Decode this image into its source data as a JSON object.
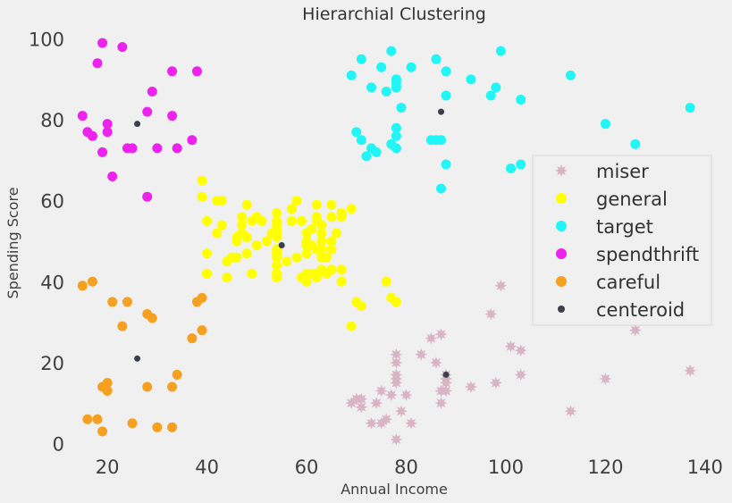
{
  "chart_data": {
    "type": "scatter",
    "title": "Hierarchial Clustering",
    "xlabel": "Annual Income",
    "ylabel": "Spending Score",
    "xlim": [
      11,
      142
    ],
    "ylim": [
      -3,
      103
    ],
    "x_ticks": [
      "20",
      "40",
      "60",
      "80",
      "100",
      "120",
      "140"
    ],
    "y_ticks": [
      "0",
      "20",
      "40",
      "60",
      "80",
      "100"
    ],
    "grid": false,
    "legend_position": "right",
    "series": [
      {
        "name": "miser",
        "color": "#d8b4c4",
        "marker": "star",
        "points": [
          [
            69,
            10
          ],
          [
            70,
            11
          ],
          [
            71,
            9
          ],
          [
            73,
            5
          ],
          [
            74,
            10
          ],
          [
            75,
            5
          ],
          [
            76,
            6
          ],
          [
            78,
            15
          ],
          [
            78,
            17
          ],
          [
            78,
            20
          ],
          [
            78,
            22
          ],
          [
            79,
            8
          ],
          [
            80,
            12
          ],
          [
            81,
            5
          ],
          [
            85,
            26
          ],
          [
            86,
            20
          ],
          [
            87,
            27
          ],
          [
            87,
            13
          ],
          [
            87,
            10
          ],
          [
            88,
            13
          ],
          [
            88,
            15
          ],
          [
            88,
            16
          ],
          [
            93,
            14
          ],
          [
            97,
            32
          ],
          [
            98,
            15
          ],
          [
            99,
            39
          ],
          [
            101,
            24
          ],
          [
            103,
            17
          ],
          [
            103,
            23
          ],
          [
            113,
            8
          ],
          [
            120,
            16
          ],
          [
            126,
            28
          ],
          [
            137,
            18
          ],
          [
            78,
            1
          ],
          [
            75,
            13
          ],
          [
            78,
            16
          ],
          [
            83,
            22
          ],
          [
            88,
            17
          ],
          [
            77,
            12
          ],
          [
            71,
            11
          ]
        ]
      },
      {
        "name": "general",
        "color": "#ffff00",
        "marker": "circle",
        "points": [
          [
            39,
            61
          ],
          [
            39,
            65
          ],
          [
            40,
            55
          ],
          [
            40,
            47
          ],
          [
            40,
            42
          ],
          [
            40,
            42
          ],
          [
            42,
            52
          ],
          [
            42,
            60
          ],
          [
            43,
            54
          ],
          [
            43,
            60
          ],
          [
            44,
            45
          ],
          [
            44,
            41
          ],
          [
            46,
            50
          ],
          [
            46,
            46
          ],
          [
            46,
            51
          ],
          [
            47,
            56
          ],
          [
            47,
            52
          ],
          [
            48,
            59
          ],
          [
            48,
            51
          ],
          [
            48,
            47
          ],
          [
            49,
            55
          ],
          [
            49,
            42
          ],
          [
            50,
            49
          ],
          [
            50,
            56
          ],
          [
            54,
            47
          ],
          [
            54,
            54
          ],
          [
            54,
            53
          ],
          [
            54,
            48
          ],
          [
            54,
            52
          ],
          [
            54,
            42
          ],
          [
            54,
            51
          ],
          [
            54,
            55
          ],
          [
            54,
            41
          ],
          [
            54,
            44
          ],
          [
            54,
            57
          ],
          [
            54,
            46
          ],
          [
            57,
            58
          ],
          [
            57,
            55
          ],
          [
            58,
            60
          ],
          [
            58,
            46
          ],
          [
            59,
            55
          ],
          [
            59,
            41
          ],
          [
            60,
            49
          ],
          [
            60,
            40
          ],
          [
            60,
            42
          ],
          [
            60,
            52
          ],
          [
            60,
            47
          ],
          [
            60,
            50
          ],
          [
            61,
            42
          ],
          [
            61,
            49
          ],
          [
            62,
            41
          ],
          [
            62,
            48
          ],
          [
            62,
            59
          ],
          [
            62,
            55
          ],
          [
            62,
            56
          ],
          [
            62,
            42
          ],
          [
            63,
            50
          ],
          [
            63,
            46
          ],
          [
            63,
            43
          ],
          [
            63,
            48
          ],
          [
            63,
            52
          ],
          [
            63,
            54
          ],
          [
            64,
            42
          ],
          [
            64,
            46
          ],
          [
            65,
            48
          ],
          [
            65,
            50
          ],
          [
            65,
            43
          ],
          [
            65,
            59
          ],
          [
            67,
            43
          ],
          [
            67,
            57
          ],
          [
            67,
            56
          ],
          [
            67,
            40
          ],
          [
            69,
            58
          ],
          [
            69,
            29
          ],
          [
            70,
            35
          ],
          [
            71,
            34
          ],
          [
            76,
            40
          ],
          [
            77,
            36
          ],
          [
            78,
            35
          ],
          [
            45,
            46
          ],
          [
            47,
            54
          ],
          [
            51,
            55
          ],
          [
            56,
            45
          ],
          [
            61,
            53
          ],
          [
            65,
            56
          ],
          [
            53,
            52
          ],
          [
            52,
            50
          ],
          [
            66,
            52
          ]
        ]
      },
      {
        "name": "target",
        "color": "#22f5f5",
        "marker": "circle",
        "points": [
          [
            69,
            91
          ],
          [
            70,
            77
          ],
          [
            71,
            95
          ],
          [
            71,
            75
          ],
          [
            72,
            71
          ],
          [
            73,
            88
          ],
          [
            73,
            73
          ],
          [
            74,
            72
          ],
          [
            75,
            93
          ],
          [
            76,
            87
          ],
          [
            77,
            97
          ],
          [
            77,
            74
          ],
          [
            78,
            90
          ],
          [
            78,
            88
          ],
          [
            78,
            76
          ],
          [
            78,
            89
          ],
          [
            78,
            78
          ],
          [
            78,
            73
          ],
          [
            79,
            83
          ],
          [
            81,
            93
          ],
          [
            85,
            75
          ],
          [
            86,
            95
          ],
          [
            87,
            63
          ],
          [
            87,
            75
          ],
          [
            88,
            92
          ],
          [
            88,
            86
          ],
          [
            88,
            69
          ],
          [
            93,
            90
          ],
          [
            97,
            86
          ],
          [
            98,
            88
          ],
          [
            99,
            97
          ],
          [
            101,
            68
          ],
          [
            103,
            85
          ],
          [
            103,
            69
          ],
          [
            113,
            91
          ],
          [
            120,
            79
          ],
          [
            126,
            74
          ],
          [
            137,
            83
          ],
          [
            86,
            75
          ],
          [
            78,
            90
          ]
        ]
      },
      {
        "name": "spendthrift",
        "color": "#ee22ee",
        "marker": "circle",
        "points": [
          [
            15,
            81
          ],
          [
            16,
            77
          ],
          [
            17,
            76
          ],
          [
            18,
            94
          ],
          [
            19,
            72
          ],
          [
            19,
            99
          ],
          [
            20,
            77
          ],
          [
            20,
            79
          ],
          [
            21,
            66
          ],
          [
            23,
            98
          ],
          [
            24,
            73
          ],
          [
            25,
            73
          ],
          [
            28,
            82
          ],
          [
            28,
            61
          ],
          [
            29,
            87
          ],
          [
            30,
            73
          ],
          [
            33,
            92
          ],
          [
            33,
            81
          ],
          [
            34,
            73
          ],
          [
            37,
            75
          ],
          [
            38,
            92
          ]
        ]
      },
      {
        "name": "careful",
        "color": "#f5a020",
        "marker": "circle",
        "points": [
          [
            15,
            39
          ],
          [
            16,
            6
          ],
          [
            17,
            40
          ],
          [
            18,
            6
          ],
          [
            19,
            3
          ],
          [
            19,
            14
          ],
          [
            20,
            15
          ],
          [
            20,
            13
          ],
          [
            21,
            35
          ],
          [
            23,
            29
          ],
          [
            24,
            35
          ],
          [
            25,
            5
          ],
          [
            28,
            14
          ],
          [
            28,
            32
          ],
          [
            29,
            31
          ],
          [
            30,
            4
          ],
          [
            33,
            4
          ],
          [
            33,
            14
          ],
          [
            34,
            17
          ],
          [
            37,
            26
          ],
          [
            38,
            35
          ],
          [
            39,
            36
          ],
          [
            39,
            28
          ]
        ]
      },
      {
        "name": "centeroid",
        "color": "#3a3f4b",
        "marker": "circle",
        "points": [
          [
            26,
            79
          ],
          [
            55,
            49
          ],
          [
            87,
            82
          ],
          [
            26,
            21
          ],
          [
            88,
            17
          ]
        ]
      }
    ]
  }
}
